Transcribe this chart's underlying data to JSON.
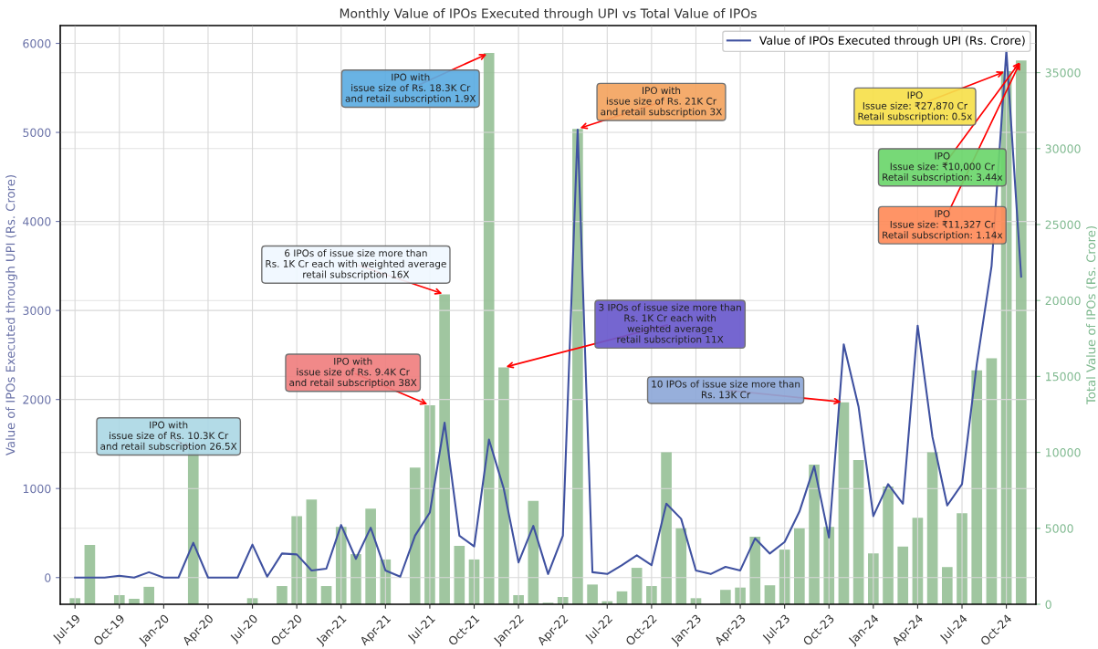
{
  "chart_data": {
    "type": "bar",
    "title": "Monthly Value of IPOs Executed through UPI vs Total Value of IPOs",
    "ylabel": "Value of IPOs Executed through UPI (Rs. Crore)",
    "y2label": "Total Value of IPOs (Rs. Crore)",
    "x": [
      "2019-07",
      "2019-08",
      "2019-09",
      "2019-10",
      "2019-11",
      "2019-12",
      "2020-01",
      "2020-02",
      "2020-03",
      "2020-04",
      "2020-05",
      "2020-06",
      "2020-07",
      "2020-08",
      "2020-09",
      "2020-10",
      "2020-11",
      "2020-12",
      "2021-01",
      "2021-02",
      "2021-03",
      "2021-04",
      "2021-05",
      "2021-06",
      "2021-07",
      "2021-08",
      "2021-09",
      "2021-10",
      "2021-11",
      "2021-12",
      "2022-01",
      "2022-02",
      "2022-03",
      "2022-04",
      "2022-05",
      "2022-06",
      "2022-07",
      "2022-08",
      "2022-09",
      "2022-10",
      "2022-11",
      "2022-12",
      "2023-01",
      "2023-02",
      "2023-03",
      "2023-04",
      "2023-05",
      "2023-06",
      "2023-07",
      "2023-08",
      "2023-09",
      "2023-10",
      "2023-11",
      "2023-12",
      "2024-01",
      "2024-02",
      "2024-03",
      "2024-04",
      "2024-05",
      "2024-06",
      "2024-07",
      "2024-08",
      "2024-09",
      "2024-10",
      "2024-11"
    ],
    "series": [
      {
        "axis": "y2",
        "color": "#8fbc8f",
        "values": [
          400,
          3900,
          0,
          600,
          360,
          1150,
          0,
          0,
          10200,
          0,
          0,
          0,
          400,
          0,
          1200,
          5800,
          6900,
          1200,
          5100,
          3300,
          6300,
          2950,
          0,
          9000,
          13100,
          20400,
          3850,
          2950,
          36300,
          15600,
          600,
          6800,
          100,
          480,
          31300,
          1300,
          200,
          850,
          2400,
          1200,
          10000,
          5000,
          400,
          0,
          950,
          1100,
          4450,
          1250,
          3600,
          5000,
          9200,
          5100,
          13300,
          9500,
          3350,
          7750,
          3800,
          5700,
          10000,
          2450,
          6000,
          15400,
          16200,
          35100,
          35800
        ]
      },
      {
        "type": "line",
        "axis": "y",
        "name": "Value of IPOs Executed through UPI (Rs. Crore)",
        "color": "#3f51a0",
        "values": [
          0,
          0,
          0,
          20,
          0,
          60,
          0,
          0,
          390,
          0,
          0,
          0,
          370,
          10,
          270,
          260,
          80,
          100,
          590,
          210,
          560,
          80,
          10,
          470,
          730,
          1740,
          470,
          350,
          1550,
          1000,
          170,
          580,
          40,
          470,
          5030,
          60,
          40,
          140,
          250,
          140,
          830,
          660,
          80,
          40,
          120,
          80,
          440,
          270,
          400,
          740,
          1250,
          450,
          2620,
          1920,
          690,
          1050,
          830,
          2830,
          1580,
          810,
          1050,
          2400,
          3500,
          5920,
          3380
        ]
      }
    ],
    "xlim": [
      "2019-06",
      "2024-12"
    ],
    "xticks": [
      {
        "value": "2019-07",
        "label": "Jul-19"
      },
      {
        "value": "2019-10",
        "label": "Oct-19"
      },
      {
        "value": "2020-01",
        "label": "Jan-20"
      },
      {
        "value": "2020-04",
        "label": "Apr-20"
      },
      {
        "value": "2020-07",
        "label": "Jul-20"
      },
      {
        "value": "2020-10",
        "label": "Oct-20"
      },
      {
        "value": "2021-01",
        "label": "Jan-21"
      },
      {
        "value": "2021-04",
        "label": "Apr-21"
      },
      {
        "value": "2021-07",
        "label": "Jul-21"
      },
      {
        "value": "2021-10",
        "label": "Oct-21"
      },
      {
        "value": "2022-01",
        "label": "Jan-22"
      },
      {
        "value": "2022-04",
        "label": "Apr-22"
      },
      {
        "value": "2022-07",
        "label": "Jul-22"
      },
      {
        "value": "2022-10",
        "label": "Oct-22"
      },
      {
        "value": "2023-01",
        "label": "Jan-23"
      },
      {
        "value": "2023-04",
        "label": "Apr-23"
      },
      {
        "value": "2023-07",
        "label": "Jul-23"
      },
      {
        "value": "2023-10",
        "label": "Oct-23"
      },
      {
        "value": "2024-01",
        "label": "Jan-24"
      },
      {
        "value": "2024-04",
        "label": "Apr-24"
      },
      {
        "value": "2024-07",
        "label": "Jul-24"
      },
      {
        "value": "2024-10",
        "label": "Oct-24"
      }
    ],
    "ylim": [
      -300,
      6200
    ],
    "yticks": [
      0,
      1000,
      2000,
      3000,
      4000,
      5000,
      6000
    ],
    "y2lim": [
      0,
      38100
    ],
    "y2ticks": [
      0,
      5000,
      10000,
      15000,
      20000,
      25000,
      30000,
      35000
    ],
    "grid": true,
    "legend": "top right",
    "annotations": [
      {
        "text": "IPO with\nissue size of Rs. 10.3K Cr\nand retail subscription 26.5X",
        "x": "2020-03",
        "y": 1440
      },
      {
        "text": "IPO with\nissue size of Rs. 9.4K Cr\nand retail subscription 38X",
        "x": "2021-07",
        "y": 1935
      },
      {
        "text": "6 IPOs of issue size more than\nRs. 1K Cr each with weighted average\nretail subscription 16X",
        "x": "2021-08",
        "y": 3180
      },
      {
        "text": "IPO with\nissue size of Rs. 18.3K Cr\nand retail subscription 1.9X",
        "x": "2021-11",
        "y": 5890
      },
      {
        "text": "3 IPOs of issue size more than\nRs. 1K Cr each with\nweighted average\nretail subscription 11X",
        "x": "2021-12",
        "y": 2360
      },
      {
        "text": "IPO with\nissue size of Rs. 21K Cr\nand retail subscription 3X",
        "x": "2022-05",
        "y": 5040
      },
      {
        "text": "10 IPOs of issue size more than\nRs. 13K Cr",
        "x": "2023-11",
        "y": 1970
      },
      {
        "text": "IPO\nIssue size: ₹27,870 Cr\nRetail subscription: 0.5x",
        "x": "2024-10",
        "y": 5690
      },
      {
        "text": "IPO\nIssue size: ₹10,000 Cr\nRetail subscription: 3.44x",
        "x": "2024-11",
        "y": 5810
      },
      {
        "text": "IPO\nIssue size: ₹11,327 Cr\nRetail subscription: 1.14x",
        "x": "2024-11",
        "y": 5810
      }
    ]
  }
}
